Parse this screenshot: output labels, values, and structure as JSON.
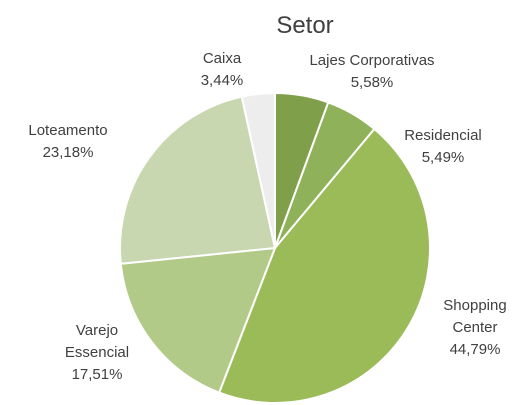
{
  "chart_data": {
    "type": "pie",
    "title": "Setor",
    "categories": [
      "Lajes Corporativas",
      "Residencial",
      "Shopping Center",
      "Varejo Essencial",
      "Loteamento",
      "Caixa"
    ],
    "values": [
      5.58,
      5.49,
      44.79,
      17.51,
      23.18,
      3.44
    ],
    "value_labels": [
      "5,58%",
      "5,49%",
      "44,79%",
      "17,51%",
      "23,18%",
      "3,44%"
    ],
    "colors": [
      "#7f9f4a",
      "#8fb15a",
      "#9bbb59",
      "#b2ca88",
      "#c8d7b0",
      "#ededed"
    ]
  }
}
